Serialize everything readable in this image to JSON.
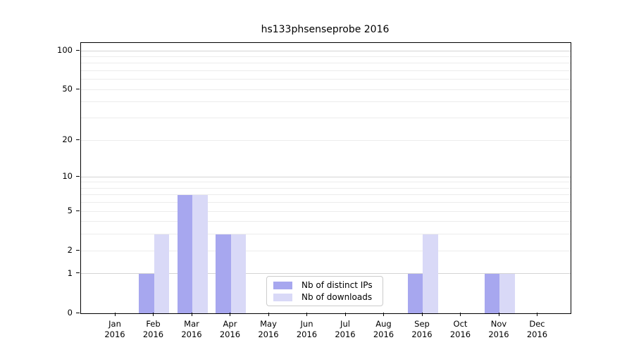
{
  "chart_data": {
    "type": "bar",
    "title": "hs133phsenseprobe 2016",
    "categories": [
      "Jan",
      "Feb",
      "Mar",
      "Apr",
      "May",
      "Jun",
      "Jul",
      "Aug",
      "Sep",
      "Oct",
      "Nov",
      "Dec"
    ],
    "year_label": "2016",
    "series": [
      {
        "name": "Nb of distinct IPs",
        "color": "#a7a7ef",
        "values": [
          0,
          1,
          7,
          3,
          0,
          0,
          0,
          0,
          1,
          0,
          1,
          0
        ]
      },
      {
        "name": "Nb of downloads",
        "color": "#d9d9f7",
        "values": [
          0,
          3,
          7,
          3,
          0,
          0,
          0,
          0,
          3,
          0,
          1,
          0
        ]
      }
    ],
    "yscale": "log1p",
    "ylim": [
      0,
      118
    ],
    "yticks": [
      0,
      1,
      2,
      5,
      10,
      20,
      50,
      100
    ],
    "major_gridlines": [
      1,
      10,
      100
    ],
    "minor_gridlines": [
      2,
      3,
      4,
      5,
      6,
      7,
      8,
      9,
      20,
      30,
      40,
      50,
      60,
      70,
      80,
      90
    ],
    "grid_color_major": "#d4d4d4",
    "grid_color_minor": "#ececec",
    "axis_color": "#000000",
    "background_color": "#ffffff",
    "legend_position": "lower center",
    "grid": true
  }
}
